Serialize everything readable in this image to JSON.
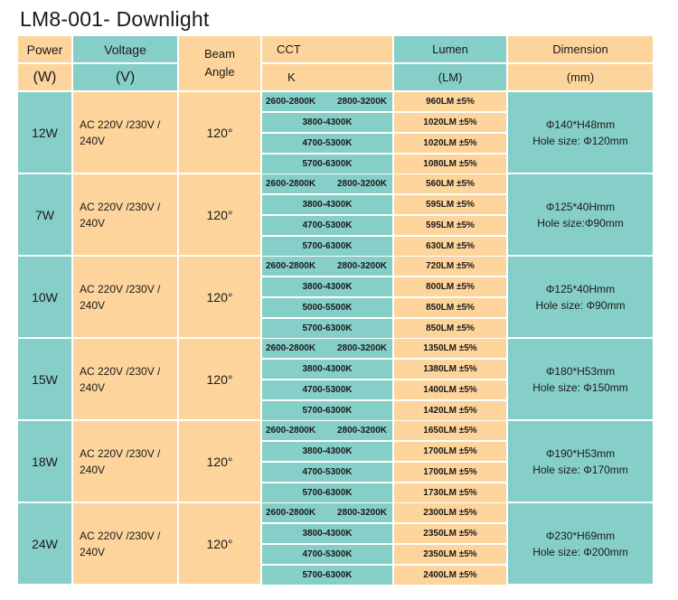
{
  "title": "LM8-001- Downlight",
  "header": {
    "power": "Power",
    "power_unit": "(W)",
    "voltage": "Voltage",
    "voltage_unit": "(V)",
    "beam_line1": "Beam",
    "beam_line2": "Angle",
    "cct": "CCT",
    "cct_unit": "K",
    "lumen": "Lumen",
    "lumen_unit": "(LM)",
    "dimension": "Dimension",
    "dimension_unit": "(mm)"
  },
  "rows": [
    {
      "power": "12W",
      "voltage_line1": "AC 220V /230V /",
      "voltage_line2": "240V",
      "beam": "120°",
      "cct": [
        {
          "a": "2600-2800K",
          "b": "2800-3200K"
        },
        {
          "a": "3800-4300K"
        },
        {
          "a": "4700-5300K"
        },
        {
          "a": "5700-6300K"
        }
      ],
      "lumen": [
        "960LM ±5%",
        "1020LM ±5%",
        "1020LM ±5%",
        "1080LM ±5%"
      ],
      "dimension_line1": "Φ140*H48mm",
      "dimension_line2": "Hole size: Φ120mm"
    },
    {
      "power": "7W",
      "voltage_line1": "AC 220V /230V /",
      "voltage_line2": "240V",
      "beam": "120°",
      "cct": [
        {
          "a": "2600-2800K",
          "b": "2800-3200K"
        },
        {
          "a": "3800-4300K"
        },
        {
          "a": "4700-5300K"
        },
        {
          "a": "5700-6300K"
        }
      ],
      "lumen": [
        "560LM ±5%",
        "595LM ±5%",
        "595LM ±5%",
        "630LM ±5%"
      ],
      "dimension_line1": "Φ125*40Hmm",
      "dimension_line2": "Hole size:Φ90mm"
    },
    {
      "power": "10W",
      "voltage_line1": "AC 220V /230V /",
      "voltage_line2": "240V",
      "beam": "120°",
      "cct": [
        {
          "a": "2600-2800K",
          "b": "2800-3200K"
        },
        {
          "a": "3800-4300K"
        },
        {
          "a": "5000-5500K"
        },
        {
          "a": "5700-6300K"
        }
      ],
      "lumen": [
        "720LM ±5%",
        "800LM ±5%",
        "850LM ±5%",
        "850LM ±5%"
      ],
      "dimension_line1": "Φ125*40Hmm",
      "dimension_line2": "Hole size: Φ90mm"
    },
    {
      "power": "15W",
      "voltage_line1": "AC 220V /230V /",
      "voltage_line2": "240V",
      "beam": "120°",
      "cct": [
        {
          "a": "2600-2800K",
          "b": "2800-3200K"
        },
        {
          "a": "3800-4300K"
        },
        {
          "a": "4700-5300K"
        },
        {
          "a": "5700-6300K"
        }
      ],
      "lumen": [
        "1350LM ±5%",
        "1380LM ±5%",
        "1400LM ±5%",
        "1420LM ±5%"
      ],
      "dimension_line1": "Φ180*H53mm",
      "dimension_line2": "Hole size: Φ150mm"
    },
    {
      "power": "18W",
      "voltage_line1": "AC 220V /230V /",
      "voltage_line2": "240V",
      "beam": "120°",
      "cct": [
        {
          "a": "2600-2800K",
          "b": "2800-3200K"
        },
        {
          "a": "3800-4300K"
        },
        {
          "a": "4700-5300K"
        },
        {
          "a": "5700-6300K"
        }
      ],
      "lumen": [
        "1650LM ±5%",
        "1700LM ±5%",
        "1700LM ±5%",
        "1730LM ±5%"
      ],
      "dimension_line1": "Φ190*H53mm",
      "dimension_line2": "Hole size: Φ170mm"
    },
    {
      "power": "24W",
      "voltage_line1": "AC 220V /230V /",
      "voltage_line2": "240V",
      "beam": "120°",
      "cct": [
        {
          "a": "2600-2800K",
          "b": "2800-3200K"
        },
        {
          "a": "3800-4300K"
        },
        {
          "a": "4700-5300K"
        },
        {
          "a": "5700-6300K"
        }
      ],
      "lumen": [
        "2300LM ±5%",
        "2350LM ±5%",
        "2350LM ±5%",
        "2400LM ±5%"
      ],
      "dimension_line1": "Φ230*H69mm",
      "dimension_line2": "Hole size: Φ200mm"
    }
  ],
  "colors": {
    "orange": "#fdd49b",
    "teal": "#86cfc8"
  }
}
